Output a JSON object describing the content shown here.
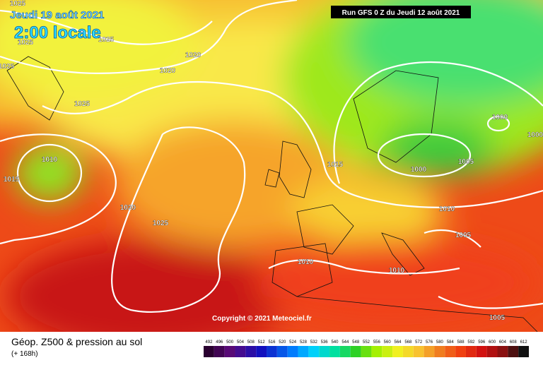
{
  "header": {
    "date": "Jeudi 19 août 2021",
    "time": "2:00 locale",
    "run": "Run GFS 0 Z du Jeudi 12 août 2021"
  },
  "copyright": "Copyright © 2021 Meteociel.fr",
  "isobar_labels": [
    1025,
    1025,
    1025,
    1020,
    1020,
    1025,
    1010,
    1015,
    1020,
    1025,
    1015,
    1000,
    1000,
    1000,
    1005,
    1010,
    1005,
    1010,
    1010,
    1005,
    1025
  ],
  "legend": {
    "title": "Géop. Z500 & pression au sol",
    "subtitle": "(+ 168h)",
    "ticks": [
      492,
      496,
      500,
      504,
      508,
      512,
      516,
      520,
      524,
      528,
      532,
      536,
      540,
      544,
      548,
      552,
      556,
      560,
      564,
      568,
      572,
      576,
      580,
      584,
      588,
      592,
      596,
      600,
      604,
      608,
      612
    ]
  }
}
